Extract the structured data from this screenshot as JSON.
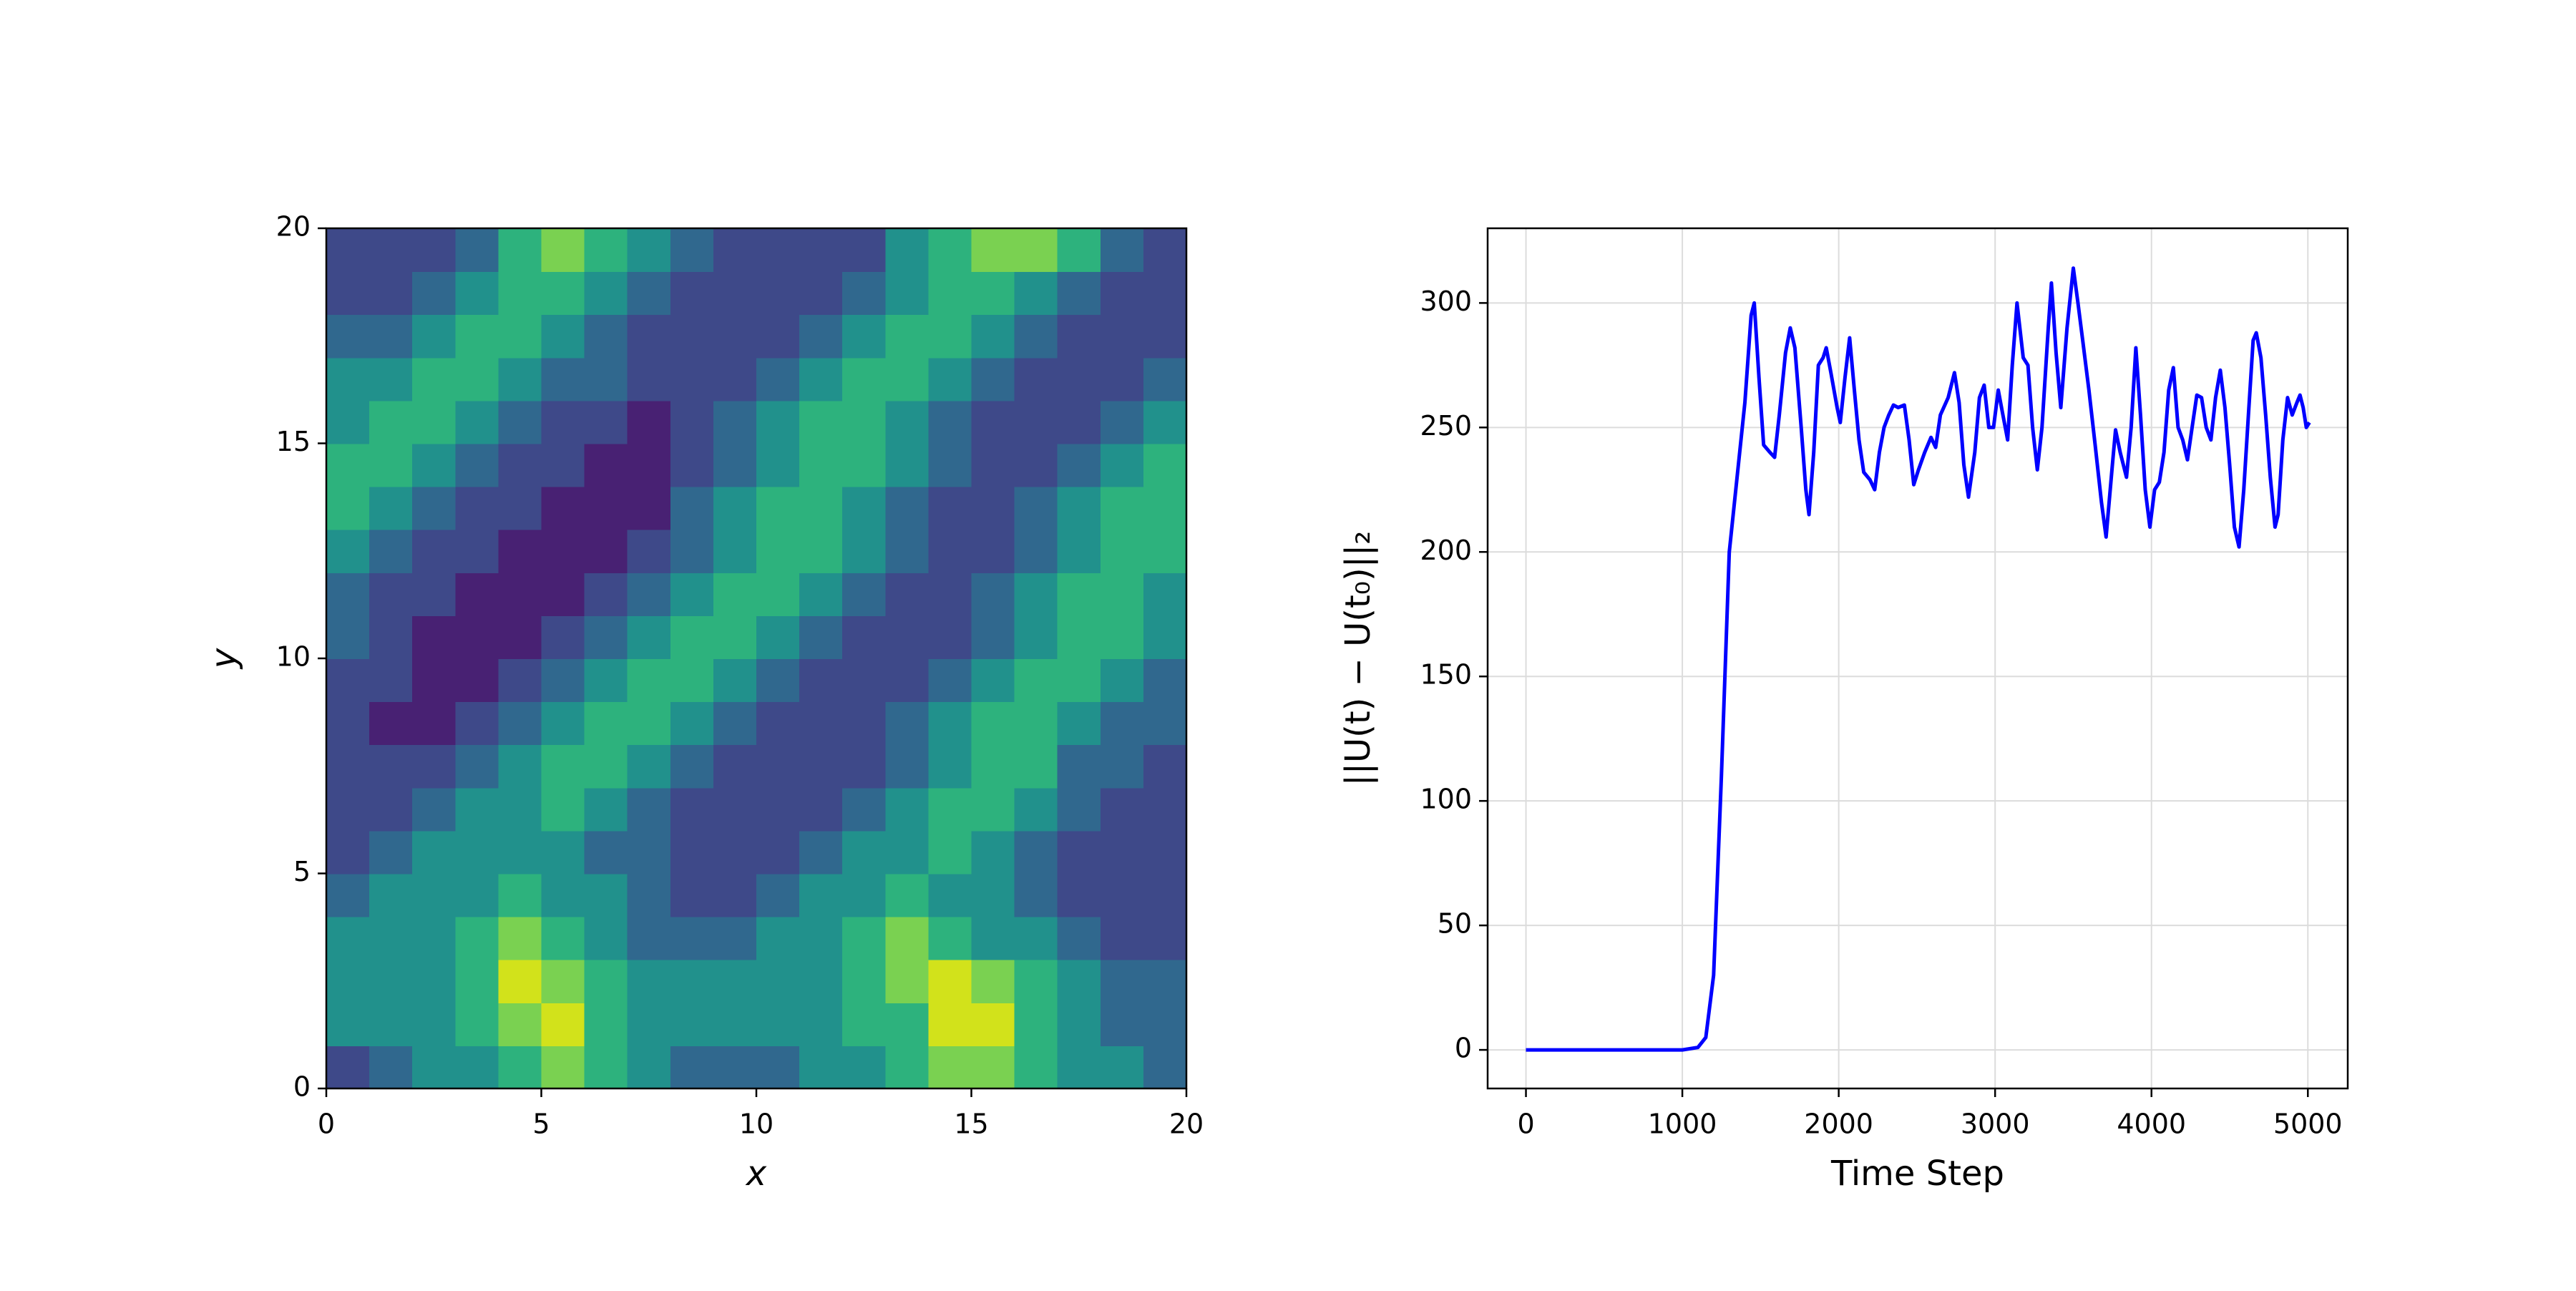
{
  "chart_data": [
    {
      "type": "contour",
      "xlabel": "x",
      "ylabel": "y",
      "xlim": [
        0,
        20
      ],
      "ylim": [
        0,
        20
      ],
      "xticks": [
        0,
        5,
        10,
        15,
        20
      ],
      "yticks": [
        0,
        5,
        10,
        15,
        20
      ],
      "colors": [
        "#482173",
        "#3e4989",
        "#30688e",
        "#21918c",
        "#2db27d",
        "#7ad151",
        "#d2e21b"
      ],
      "z": [
        [
          1,
          2,
          3,
          3,
          4,
          5,
          4,
          3,
          2,
          2,
          2,
          3,
          3,
          4,
          5,
          5,
          4,
          3,
          3,
          2
        ],
        [
          3,
          3,
          3,
          4,
          5,
          6,
          4,
          3,
          3,
          3,
          3,
          3,
          4,
          4,
          6,
          6,
          4,
          3,
          2,
          2
        ],
        [
          3,
          3,
          3,
          4,
          6,
          5,
          4,
          3,
          3,
          3,
          3,
          3,
          4,
          5,
          6,
          5,
          4,
          3,
          2,
          2
        ],
        [
          3,
          3,
          3,
          4,
          5,
          4,
          3,
          2,
          2,
          2,
          3,
          3,
          4,
          5,
          4,
          3,
          3,
          2,
          1,
          1
        ],
        [
          2,
          3,
          3,
          3,
          4,
          3,
          3,
          2,
          1,
          1,
          2,
          3,
          3,
          4,
          3,
          3,
          2,
          1,
          1,
          1
        ],
        [
          1,
          2,
          3,
          3,
          3,
          3,
          2,
          2,
          1,
          1,
          1,
          2,
          3,
          3,
          4,
          3,
          2,
          1,
          1,
          1
        ],
        [
          1,
          1,
          2,
          3,
          3,
          4,
          3,
          2,
          1,
          1,
          1,
          1,
          2,
          3,
          4,
          4,
          3,
          2,
          1,
          1
        ],
        [
          1,
          1,
          1,
          2,
          3,
          4,
          4,
          3,
          2,
          1,
          1,
          1,
          1,
          2,
          3,
          4,
          4,
          2,
          2,
          1
        ],
        [
          1,
          0,
          0,
          1,
          2,
          3,
          4,
          4,
          3,
          2,
          1,
          1,
          1,
          2,
          3,
          4,
          4,
          3,
          2,
          2
        ],
        [
          1,
          1,
          0,
          0,
          1,
          2,
          3,
          4,
          4,
          3,
          2,
          1,
          1,
          1,
          2,
          3,
          4,
          4,
          3,
          2
        ],
        [
          2,
          1,
          0,
          0,
          0,
          1,
          2,
          3,
          4,
          4,
          3,
          2,
          1,
          1,
          1,
          2,
          3,
          4,
          4,
          3
        ],
        [
          2,
          1,
          1,
          0,
          0,
          0,
          1,
          2,
          3,
          4,
          4,
          3,
          2,
          1,
          1,
          2,
          3,
          4,
          4,
          3
        ],
        [
          3,
          2,
          1,
          1,
          0,
          0,
          0,
          1,
          2,
          3,
          4,
          4,
          3,
          2,
          1,
          1,
          2,
          3,
          4,
          4
        ],
        [
          4,
          3,
          2,
          1,
          1,
          0,
          0,
          0,
          2,
          3,
          4,
          4,
          3,
          2,
          1,
          1,
          2,
          3,
          4,
          4
        ],
        [
          4,
          4,
          3,
          2,
          1,
          1,
          0,
          0,
          1,
          2,
          3,
          4,
          4,
          3,
          2,
          1,
          1,
          2,
          3,
          4
        ],
        [
          3,
          4,
          4,
          3,
          2,
          1,
          1,
          0,
          1,
          2,
          3,
          4,
          4,
          3,
          2,
          1,
          1,
          1,
          2,
          3
        ],
        [
          3,
          3,
          4,
          4,
          3,
          2,
          2,
          1,
          1,
          1,
          2,
          3,
          4,
          4,
          3,
          2,
          1,
          1,
          1,
          2
        ],
        [
          2,
          2,
          3,
          4,
          4,
          3,
          2,
          1,
          1,
          1,
          1,
          2,
          3,
          4,
          4,
          3,
          2,
          1,
          1,
          1
        ],
        [
          1,
          1,
          2,
          3,
          4,
          4,
          3,
          2,
          1,
          1,
          1,
          1,
          2,
          3,
          4,
          4,
          3,
          2,
          1,
          1
        ],
        [
          1,
          1,
          1,
          2,
          4,
          5,
          4,
          3,
          2,
          1,
          1,
          1,
          1,
          3,
          4,
          5,
          5,
          4,
          2,
          1
        ]
      ]
    },
    {
      "type": "line",
      "xlabel": "Time Step",
      "ylabel": "||U(t) − U(t₀)||₂",
      "xlim": [
        -245,
        5255
      ],
      "ylim": [
        -15.5,
        330
      ],
      "xticks": [
        0,
        1000,
        2000,
        3000,
        4000,
        5000
      ],
      "yticks": [
        0,
        50,
        100,
        150,
        200,
        250,
        300
      ],
      "grid": true,
      "color": "#0000ff",
      "x": [
        0,
        1000,
        1100,
        1150,
        1200,
        1250,
        1300,
        1350,
        1400,
        1440,
        1460,
        1490,
        1520,
        1560,
        1590,
        1620,
        1660,
        1690,
        1720,
        1760,
        1790,
        1810,
        1840,
        1870,
        1900,
        1920,
        1950,
        1990,
        2010,
        2040,
        2070,
        2100,
        2130,
        2160,
        2200,
        2230,
        2260,
        2290,
        2320,
        2350,
        2380,
        2420,
        2450,
        2480,
        2510,
        2550,
        2590,
        2620,
        2650,
        2700,
        2740,
        2770,
        2800,
        2830,
        2870,
        2900,
        2930,
        2960,
        2990,
        3020,
        3050,
        3080,
        3110,
        3140,
        3180,
        3210,
        3240,
        3270,
        3300,
        3340,
        3360,
        3390,
        3420,
        3460,
        3500,
        3530,
        3560,
        3600,
        3640,
        3680,
        3710,
        3750,
        3770,
        3800,
        3840,
        3870,
        3900,
        3930,
        3960,
        3990,
        4020,
        4050,
        4080,
        4110,
        4140,
        4170,
        4200,
        4230,
        4260,
        4290,
        4320,
        4350,
        4380,
        4410,
        4440,
        4470,
        4500,
        4530,
        4560,
        4590,
        4620,
        4650,
        4670,
        4700,
        4730,
        4760,
        4790,
        4810,
        4840,
        4870,
        4900,
        4930,
        4950,
        4970,
        4990,
        5010
      ],
      "values": [
        0,
        0,
        1,
        5,
        30,
        110,
        200,
        230,
        260,
        295,
        300,
        270,
        243,
        240,
        238,
        255,
        280,
        290,
        282,
        250,
        225,
        215,
        240,
        275,
        278,
        282,
        272,
        258,
        252,
        270,
        286,
        265,
        245,
        232,
        229,
        225,
        240,
        250,
        255,
        259,
        258,
        259,
        245,
        227,
        233,
        240,
        246,
        242,
        255,
        262,
        272,
        260,
        235,
        222,
        240,
        262,
        267,
        250,
        250,
        265,
        255,
        245,
        275,
        300,
        278,
        275,
        250,
        233,
        250,
        290,
        308,
        280,
        258,
        290,
        314,
        300,
        285,
        265,
        243,
        220,
        206,
        235,
        249,
        240,
        230,
        250,
        282,
        255,
        225,
        210,
        225,
        228,
        240,
        265,
        274,
        250,
        245,
        237,
        250,
        263,
        262,
        250,
        245,
        262,
        273,
        258,
        235,
        210,
        202,
        225,
        255,
        285,
        288,
        278,
        255,
        230,
        210,
        215,
        245,
        262,
        255,
        260,
        263,
        258,
        250,
        252
      ]
    }
  ]
}
